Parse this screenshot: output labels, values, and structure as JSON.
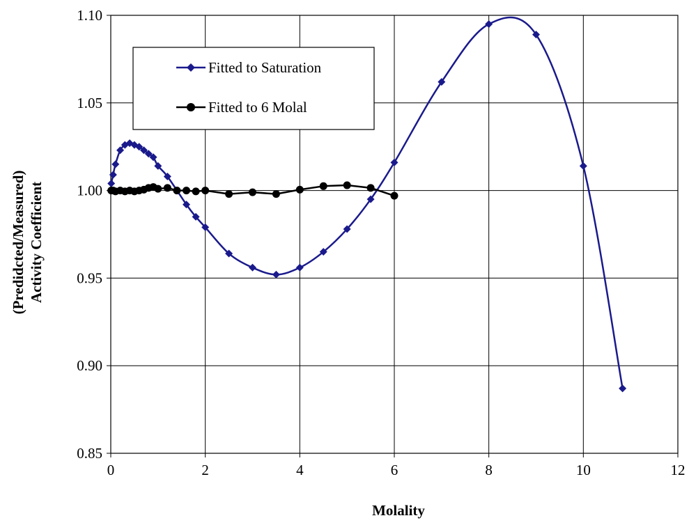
{
  "chart_data": {
    "type": "line",
    "title": "",
    "xlabel": "Molality",
    "ylabel_lines": [
      "(Predidcted/Measured)",
      "Activity Coefficient"
    ],
    "xlim": [
      0,
      12
    ],
    "ylim": [
      0.85,
      1.1
    ],
    "x_ticks": [
      0,
      2,
      4,
      6,
      8,
      10,
      12
    ],
    "y_ticks": [
      0.85,
      0.9,
      0.95,
      1.0,
      1.05,
      1.1
    ],
    "x_tick_labels": [
      "0",
      "2",
      "4",
      "6",
      "8",
      "10",
      "12"
    ],
    "y_tick_labels": [
      "0.85",
      "0.90",
      "0.95",
      "1.00",
      "1.05",
      "1.10"
    ],
    "grid": true,
    "legend_position": "top-left",
    "series": [
      {
        "name": "Fitted to Saturation",
        "color": "#1a1a8c",
        "marker": "diamond",
        "smooth": true,
        "x": [
          0.01,
          0.05,
          0.1,
          0.2,
          0.3,
          0.4,
          0.5,
          0.6,
          0.7,
          0.8,
          0.9,
          1.0,
          1.2,
          1.6,
          1.8,
          2.0,
          2.5,
          3.0,
          3.5,
          4.0,
          4.5,
          5.0,
          5.5,
          6.0,
          7.0,
          8.0,
          9.0,
          10.0,
          10.83
        ],
        "y": [
          1.004,
          1.009,
          1.015,
          1.023,
          1.026,
          1.027,
          1.026,
          1.025,
          1.023,
          1.021,
          1.019,
          1.014,
          1.008,
          0.992,
          0.985,
          0.979,
          0.964,
          0.956,
          0.952,
          0.956,
          0.965,
          0.978,
          0.995,
          1.016,
          1.062,
          1.095,
          1.089,
          1.014,
          0.887
        ]
      },
      {
        "name": "Fitted to 6 Molal",
        "color": "#000000",
        "marker": "circle",
        "smooth": false,
        "x": [
          0.01,
          0.05,
          0.1,
          0.2,
          0.3,
          0.4,
          0.5,
          0.6,
          0.7,
          0.8,
          0.9,
          1.0,
          1.2,
          1.4,
          1.6,
          1.8,
          2.0,
          2.5,
          3.0,
          3.5,
          4.0,
          4.5,
          5.0,
          5.5,
          6.0
        ],
        "y": [
          1.0,
          1.0,
          0.9995,
          1.0,
          0.9995,
          1.0,
          0.9995,
          1.0,
          1.0005,
          1.0015,
          1.002,
          1.001,
          1.0015,
          1.0,
          1.0,
          0.9995,
          1.0,
          0.998,
          0.999,
          0.998,
          1.0005,
          1.0025,
          1.003,
          1.0015,
          0.997
        ]
      }
    ]
  }
}
